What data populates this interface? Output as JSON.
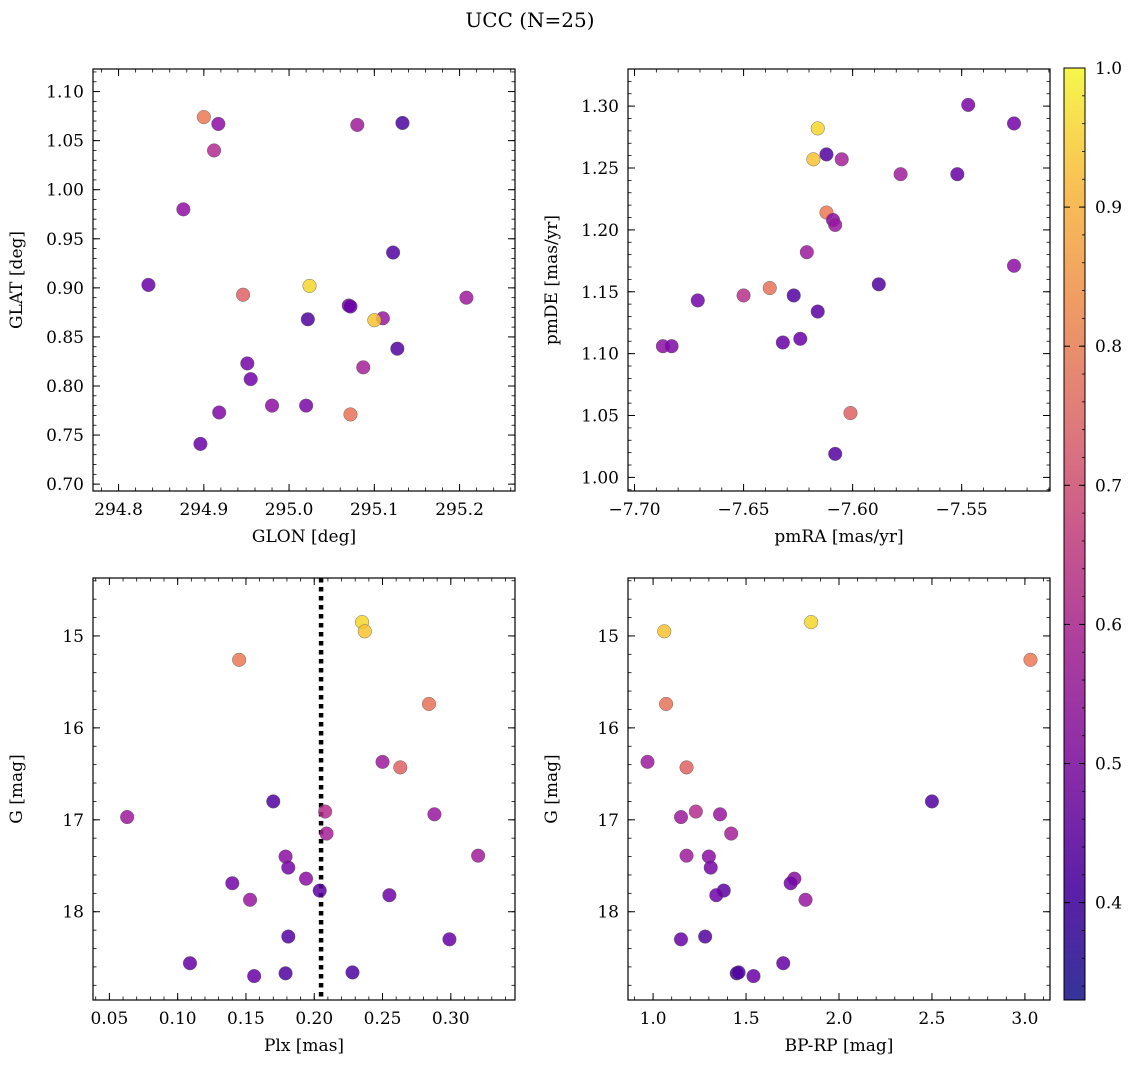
{
  "figure": {
    "title": "UCC (N=25)"
  },
  "colorbar": {
    "range": [
      0.33,
      1.0
    ],
    "ticks": [
      0.4,
      0.5,
      0.6,
      0.7,
      0.8,
      0.9,
      1.0
    ],
    "tick_labels": [
      "0.4",
      "0.5",
      "0.6",
      "0.7",
      "0.8",
      "0.9",
      "1.0"
    ],
    "colormap": "plasma"
  },
  "chart_data": [
    {
      "type": "scatter",
      "xlabel": "GLON [deg]",
      "ylabel": "GLAT [deg]",
      "xlim": [
        294.77,
        295.265
      ],
      "ylim": [
        0.693,
        1.123
      ],
      "y_inverted": false,
      "xticks": [
        294.8,
        294.9,
        295.0,
        295.1,
        295.2
      ],
      "xtick_labels": [
        "294.8",
        "294.9",
        "295.0",
        "295.1",
        "295.2"
      ],
      "yticks": [
        0.7,
        0.75,
        0.8,
        0.85,
        0.9,
        0.95,
        1.0,
        1.05,
        1.1
      ],
      "ytick_labels": [
        "0.70",
        "0.75",
        "0.80",
        "0.85",
        "0.90",
        "0.95",
        "1.00",
        "1.05",
        "1.10"
      ],
      "points": [
        {
          "x": 294.9,
          "y": 1.074,
          "c": 0.87
        },
        {
          "x": 294.917,
          "y": 1.067,
          "c": 0.52
        },
        {
          "x": 294.912,
          "y": 1.04,
          "c": 0.62
        },
        {
          "x": 295.08,
          "y": 1.066,
          "c": 0.57
        },
        {
          "x": 295.133,
          "y": 1.068,
          "c": 0.36
        },
        {
          "x": 294.876,
          "y": 0.98,
          "c": 0.53
        },
        {
          "x": 295.122,
          "y": 0.936,
          "c": 0.37
        },
        {
          "x": 294.835,
          "y": 0.903,
          "c": 0.43
        },
        {
          "x": 294.946,
          "y": 0.893,
          "c": 0.8
        },
        {
          "x": 295.024,
          "y": 0.902,
          "c": 0.98
        },
        {
          "x": 295.208,
          "y": 0.89,
          "c": 0.56
        },
        {
          "x": 295.07,
          "y": 0.882,
          "c": 0.48
        },
        {
          "x": 295.072,
          "y": 0.881,
          "c": 0.42
        },
        {
          "x": 295.022,
          "y": 0.868,
          "c": 0.37
        },
        {
          "x": 295.11,
          "y": 0.869,
          "c": 0.55
        },
        {
          "x": 295.1,
          "y": 0.867,
          "c": 0.97
        },
        {
          "x": 295.127,
          "y": 0.838,
          "c": 0.38
        },
        {
          "x": 294.951,
          "y": 0.823,
          "c": 0.46
        },
        {
          "x": 295.087,
          "y": 0.819,
          "c": 0.58
        },
        {
          "x": 294.955,
          "y": 0.807,
          "c": 0.44
        },
        {
          "x": 294.98,
          "y": 0.78,
          "c": 0.52
        },
        {
          "x": 295.02,
          "y": 0.78,
          "c": 0.47
        },
        {
          "x": 294.918,
          "y": 0.773,
          "c": 0.48
        },
        {
          "x": 295.072,
          "y": 0.771,
          "c": 0.85
        },
        {
          "x": 294.896,
          "y": 0.741,
          "c": 0.43
        }
      ]
    },
    {
      "type": "scatter",
      "xlabel": "pmRA [mas/yr]",
      "ylabel": "pmDE [mas/yr]",
      "xlim": [
        -7.703,
        -7.5095
      ],
      "ylim": [
        0.989,
        1.33
      ],
      "y_inverted": false,
      "xticks": [
        -7.7,
        -7.65,
        -7.6,
        -7.55
      ],
      "xtick_labels": [
        "−7.70",
        "−7.65",
        "−7.60",
        "−7.55"
      ],
      "yticks": [
        1.0,
        1.05,
        1.1,
        1.15,
        1.2,
        1.25,
        1.3
      ],
      "ytick_labels": [
        "1.00",
        "1.05",
        "1.10",
        "1.15",
        "1.20",
        "1.25",
        "1.30"
      ],
      "points": [
        {
          "x": -7.547,
          "y": 1.301,
          "c": 0.47
        },
        {
          "x": -7.526,
          "y": 1.286,
          "c": 0.45
        },
        {
          "x": -7.616,
          "y": 1.282,
          "c": 0.98
        },
        {
          "x": -7.612,
          "y": 1.261,
          "c": 0.37
        },
        {
          "x": -7.618,
          "y": 1.257,
          "c": 0.97
        },
        {
          "x": -7.605,
          "y": 1.257,
          "c": 0.58
        },
        {
          "x": -7.578,
          "y": 1.245,
          "c": 0.57
        },
        {
          "x": -7.552,
          "y": 1.245,
          "c": 0.42
        },
        {
          "x": -7.612,
          "y": 1.214,
          "c": 0.87
        },
        {
          "x": -7.609,
          "y": 1.208,
          "c": 0.52
        },
        {
          "x": -7.608,
          "y": 1.204,
          "c": 0.55
        },
        {
          "x": -7.621,
          "y": 1.182,
          "c": 0.56
        },
        {
          "x": -7.526,
          "y": 1.171,
          "c": 0.52
        },
        {
          "x": -7.588,
          "y": 1.156,
          "c": 0.37
        },
        {
          "x": -7.638,
          "y": 1.153,
          "c": 0.85
        },
        {
          "x": -7.65,
          "y": 1.147,
          "c": 0.64
        },
        {
          "x": -7.627,
          "y": 1.147,
          "c": 0.38
        },
        {
          "x": -7.671,
          "y": 1.143,
          "c": 0.45
        },
        {
          "x": -7.616,
          "y": 1.134,
          "c": 0.4
        },
        {
          "x": -7.624,
          "y": 1.112,
          "c": 0.43
        },
        {
          "x": -7.632,
          "y": 1.109,
          "c": 0.42
        },
        {
          "x": -7.687,
          "y": 1.106,
          "c": 0.52
        },
        {
          "x": -7.683,
          "y": 1.106,
          "c": 0.48
        },
        {
          "x": -7.601,
          "y": 1.052,
          "c": 0.8
        },
        {
          "x": -7.608,
          "y": 1.019,
          "c": 0.38
        }
      ]
    },
    {
      "type": "scatter",
      "xlabel": "Plx [mas]",
      "ylabel": "G [mag]",
      "xlim": [
        0.038,
        0.347
      ],
      "ylim": [
        18.96,
        14.37
      ],
      "y_inverted": true,
      "xticks": [
        0.05,
        0.1,
        0.15,
        0.2,
        0.25,
        0.3
      ],
      "xtick_labels": [
        "0.05",
        "0.10",
        "0.15",
        "0.20",
        "0.25",
        "0.30"
      ],
      "yticks": [
        15,
        16,
        17,
        18
      ],
      "ytick_labels": [
        "15",
        "16",
        "17",
        "18"
      ],
      "vline": {
        "x": 0.205,
        "style": "dotted"
      },
      "points": [
        {
          "x": 0.235,
          "y": 14.85,
          "c": 0.98
        },
        {
          "x": 0.237,
          "y": 14.95,
          "c": 0.97
        },
        {
          "x": 0.145,
          "y": 15.26,
          "c": 0.87
        },
        {
          "x": 0.284,
          "y": 15.74,
          "c": 0.85
        },
        {
          "x": 0.25,
          "y": 16.37,
          "c": 0.56
        },
        {
          "x": 0.263,
          "y": 16.43,
          "c": 0.8
        },
        {
          "x": 0.17,
          "y": 16.8,
          "c": 0.37
        },
        {
          "x": 0.208,
          "y": 16.91,
          "c": 0.63
        },
        {
          "x": 0.288,
          "y": 16.94,
          "c": 0.55
        },
        {
          "x": 0.063,
          "y": 16.97,
          "c": 0.56
        },
        {
          "x": 0.209,
          "y": 17.15,
          "c": 0.58
        },
        {
          "x": 0.32,
          "y": 17.39,
          "c": 0.57
        },
        {
          "x": 0.179,
          "y": 17.4,
          "c": 0.52
        },
        {
          "x": 0.181,
          "y": 17.52,
          "c": 0.46
        },
        {
          "x": 0.194,
          "y": 17.64,
          "c": 0.52
        },
        {
          "x": 0.14,
          "y": 17.69,
          "c": 0.45
        },
        {
          "x": 0.204,
          "y": 17.77,
          "c": 0.4
        },
        {
          "x": 0.255,
          "y": 17.82,
          "c": 0.44
        },
        {
          "x": 0.153,
          "y": 17.87,
          "c": 0.55
        },
        {
          "x": 0.181,
          "y": 18.27,
          "c": 0.38
        },
        {
          "x": 0.299,
          "y": 18.3,
          "c": 0.43
        },
        {
          "x": 0.109,
          "y": 18.56,
          "c": 0.42
        },
        {
          "x": 0.179,
          "y": 18.67,
          "c": 0.37
        },
        {
          "x": 0.228,
          "y": 18.66,
          "c": 0.36
        },
        {
          "x": 0.156,
          "y": 18.7,
          "c": 0.43
        }
      ]
    },
    {
      "type": "scatter",
      "xlabel": "BP-RP [mag]",
      "ylabel": "G [mag]",
      "xlim": [
        0.865,
        3.135
      ],
      "ylim": [
        18.96,
        14.37
      ],
      "y_inverted": true,
      "xticks": [
        1.0,
        1.5,
        2.0,
        2.5,
        3.0
      ],
      "xtick_labels": [
        "1.0",
        "1.5",
        "2.0",
        "2.5",
        "3.0"
      ],
      "yticks": [
        15,
        16,
        17,
        18
      ],
      "ytick_labels": [
        "15",
        "16",
        "17",
        "18"
      ],
      "points": [
        {
          "x": 1.85,
          "y": 14.85,
          "c": 0.98
        },
        {
          "x": 1.06,
          "y": 14.95,
          "c": 0.97
        },
        {
          "x": 3.03,
          "y": 15.26,
          "c": 0.87
        },
        {
          "x": 1.07,
          "y": 15.74,
          "c": 0.85
        },
        {
          "x": 0.97,
          "y": 16.37,
          "c": 0.56
        },
        {
          "x": 1.18,
          "y": 16.43,
          "c": 0.8
        },
        {
          "x": 2.5,
          "y": 16.8,
          "c": 0.37
        },
        {
          "x": 1.23,
          "y": 16.91,
          "c": 0.63
        },
        {
          "x": 1.36,
          "y": 16.94,
          "c": 0.55
        },
        {
          "x": 1.15,
          "y": 16.97,
          "c": 0.56
        },
        {
          "x": 1.42,
          "y": 17.15,
          "c": 0.58
        },
        {
          "x": 1.18,
          "y": 17.39,
          "c": 0.57
        },
        {
          "x": 1.3,
          "y": 17.4,
          "c": 0.52
        },
        {
          "x": 1.31,
          "y": 17.52,
          "c": 0.46
        },
        {
          "x": 1.76,
          "y": 17.64,
          "c": 0.52
        },
        {
          "x": 1.74,
          "y": 17.69,
          "c": 0.45
        },
        {
          "x": 1.38,
          "y": 17.77,
          "c": 0.4
        },
        {
          "x": 1.34,
          "y": 17.82,
          "c": 0.44
        },
        {
          "x": 1.82,
          "y": 17.87,
          "c": 0.55
        },
        {
          "x": 1.28,
          "y": 18.27,
          "c": 0.38
        },
        {
          "x": 1.15,
          "y": 18.3,
          "c": 0.43
        },
        {
          "x": 1.7,
          "y": 18.56,
          "c": 0.42
        },
        {
          "x": 1.45,
          "y": 18.67,
          "c": 0.37
        },
        {
          "x": 1.46,
          "y": 18.66,
          "c": 0.36
        },
        {
          "x": 1.54,
          "y": 18.7,
          "c": 0.43
        }
      ]
    }
  ]
}
